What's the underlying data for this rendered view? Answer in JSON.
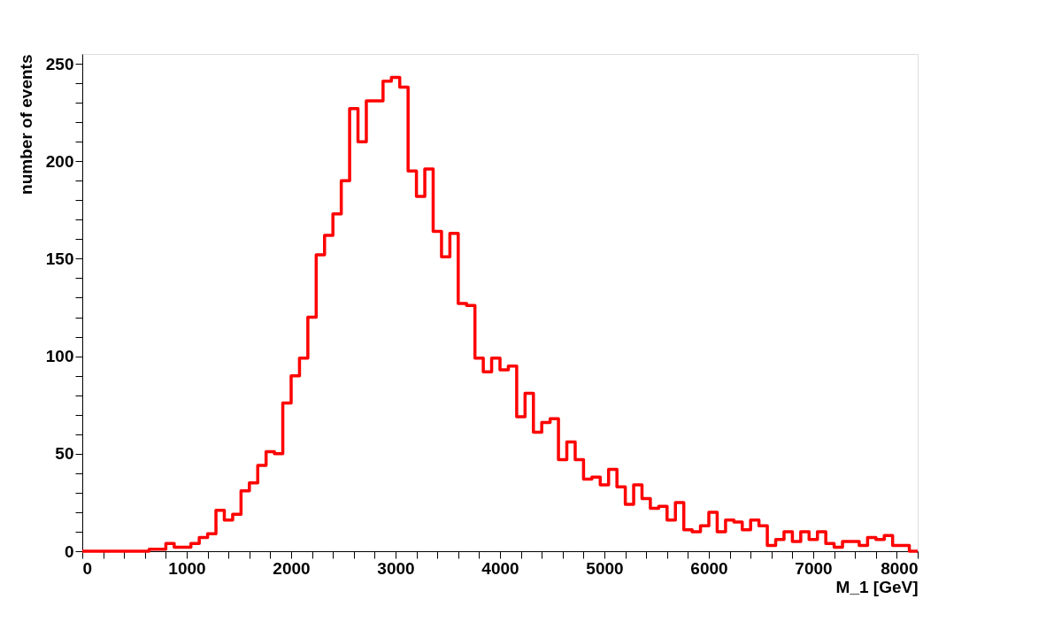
{
  "chart_data": {
    "type": "histogram",
    "xlabel": "M_1 [GeV]",
    "ylabel": "number of events",
    "color": "#ff0000",
    "bins": [
      0,
      80,
      160,
      240,
      320,
      400,
      480,
      560,
      640,
      720,
      800,
      880,
      960,
      1040,
      1120,
      1200,
      1280,
      1360,
      1440,
      1520,
      1600,
      1680,
      1760,
      1840,
      1920,
      2000,
      2080,
      2160,
      2240,
      2320,
      2400,
      2480,
      2560,
      2640,
      2720,
      2800,
      2880,
      2960,
      3040,
      3120,
      3200,
      3280,
      3360,
      3440,
      3520,
      3600,
      3680,
      3760,
      3840,
      3920,
      4000,
      4080,
      4160,
      4240,
      4320,
      4400,
      4480,
      4560,
      4640,
      4720,
      4800,
      4880,
      4960,
      5040,
      5120,
      5200,
      5280,
      5360,
      5440,
      5520,
      5600,
      5680,
      5760,
      5840,
      5920,
      6000,
      6080,
      6160,
      6240,
      6320,
      6400,
      6480,
      6560,
      6640,
      6720,
      6800,
      6880,
      6960,
      7040,
      7120,
      7200,
      7280,
      7360,
      7440,
      7520,
      7600,
      7680,
      7760,
      7840,
      7920,
      8000
    ],
    "values": [
      0,
      0,
      0,
      0,
      0,
      0,
      0,
      0,
      1,
      1,
      4,
      2,
      2,
      4,
      7,
      9,
      21,
      16,
      19,
      31,
      35,
      44,
      51,
      50,
      76,
      90,
      99,
      120,
      152,
      162,
      173,
      190,
      227,
      210,
      231,
      231,
      241,
      243,
      238,
      195,
      182,
      196,
      164,
      151,
      163,
      127,
      126,
      99,
      92,
      99,
      93,
      95,
      69,
      81,
      61,
      66,
      68,
      47,
      56,
      47,
      37,
      38,
      34,
      42,
      33,
      24,
      34,
      27,
      22,
      23,
      16,
      25,
      11,
      10,
      13,
      20,
      10,
      16,
      15,
      11,
      16,
      13,
      3,
      6,
      10,
      5,
      10,
      6,
      10,
      4,
      2,
      5,
      5,
      3,
      7,
      6,
      8,
      3,
      3,
      0
    ],
    "xlim": [
      0,
      8000
    ],
    "ylim": [
      0,
      255
    ],
    "xticks": [
      0,
      {
        "value": 200,
        "label": null
      },
      {
        "value": 400,
        "label": null
      },
      {
        "value": 600,
        "label": null
      },
      {
        "value": 800,
        "label": null
      },
      1000,
      {
        "value": 1200,
        "label": null
      },
      {
        "value": 1400,
        "label": null
      },
      {
        "value": 1600,
        "label": null
      },
      {
        "value": 1800,
        "label": null
      },
      2000,
      {
        "value": 2200,
        "label": null
      },
      {
        "value": 2400,
        "label": null
      },
      {
        "value": 2600,
        "label": null
      },
      {
        "value": 2800,
        "label": null
      },
      3000,
      {
        "value": 3200,
        "label": null
      },
      {
        "value": 3400,
        "label": null
      },
      {
        "value": 3600,
        "label": null
      },
      {
        "value": 3800,
        "label": null
      },
      4000,
      {
        "value": 4200,
        "label": null
      },
      {
        "value": 4400,
        "label": null
      },
      {
        "value": 4600,
        "label": null
      },
      {
        "value": 4800,
        "label": null
      },
      5000,
      {
        "value": 5200,
        "label": null
      },
      {
        "value": 5400,
        "label": null
      },
      {
        "value": 5600,
        "label": null
      },
      {
        "value": 5800,
        "label": null
      },
      6000,
      {
        "value": 6200,
        "label": null
      },
      {
        "value": 6400,
        "label": null
      },
      {
        "value": 6600,
        "label": null
      },
      {
        "value": 6800,
        "label": null
      },
      7000,
      {
        "value": 7200,
        "label": null
      },
      {
        "value": 7400,
        "label": null
      },
      {
        "value": 7600,
        "label": null
      },
      {
        "value": 7800,
        "label": null
      },
      8000
    ],
    "yticks": [
      0,
      {
        "value": 10,
        "label": null
      },
      {
        "value": 20,
        "label": null
      },
      {
        "value": 30,
        "label": null
      },
      {
        "value": 40,
        "label": null
      },
      50,
      {
        "value": 60,
        "label": null
      },
      {
        "value": 70,
        "label": null
      },
      {
        "value": 80,
        "label": null
      },
      {
        "value": 90,
        "label": null
      },
      100,
      {
        "value": 110,
        "label": null
      },
      {
        "value": 120,
        "label": null
      },
      {
        "value": 130,
        "label": null
      },
      {
        "value": 140,
        "label": null
      },
      150,
      {
        "value": 160,
        "label": null
      },
      {
        "value": 170,
        "label": null
      },
      {
        "value": 180,
        "label": null
      },
      {
        "value": 190,
        "label": null
      },
      200,
      {
        "value": 210,
        "label": null
      },
      {
        "value": 220,
        "label": null
      },
      {
        "value": 230,
        "label": null
      },
      {
        "value": 240,
        "label": null
      },
      250
    ],
    "grid": false
  }
}
